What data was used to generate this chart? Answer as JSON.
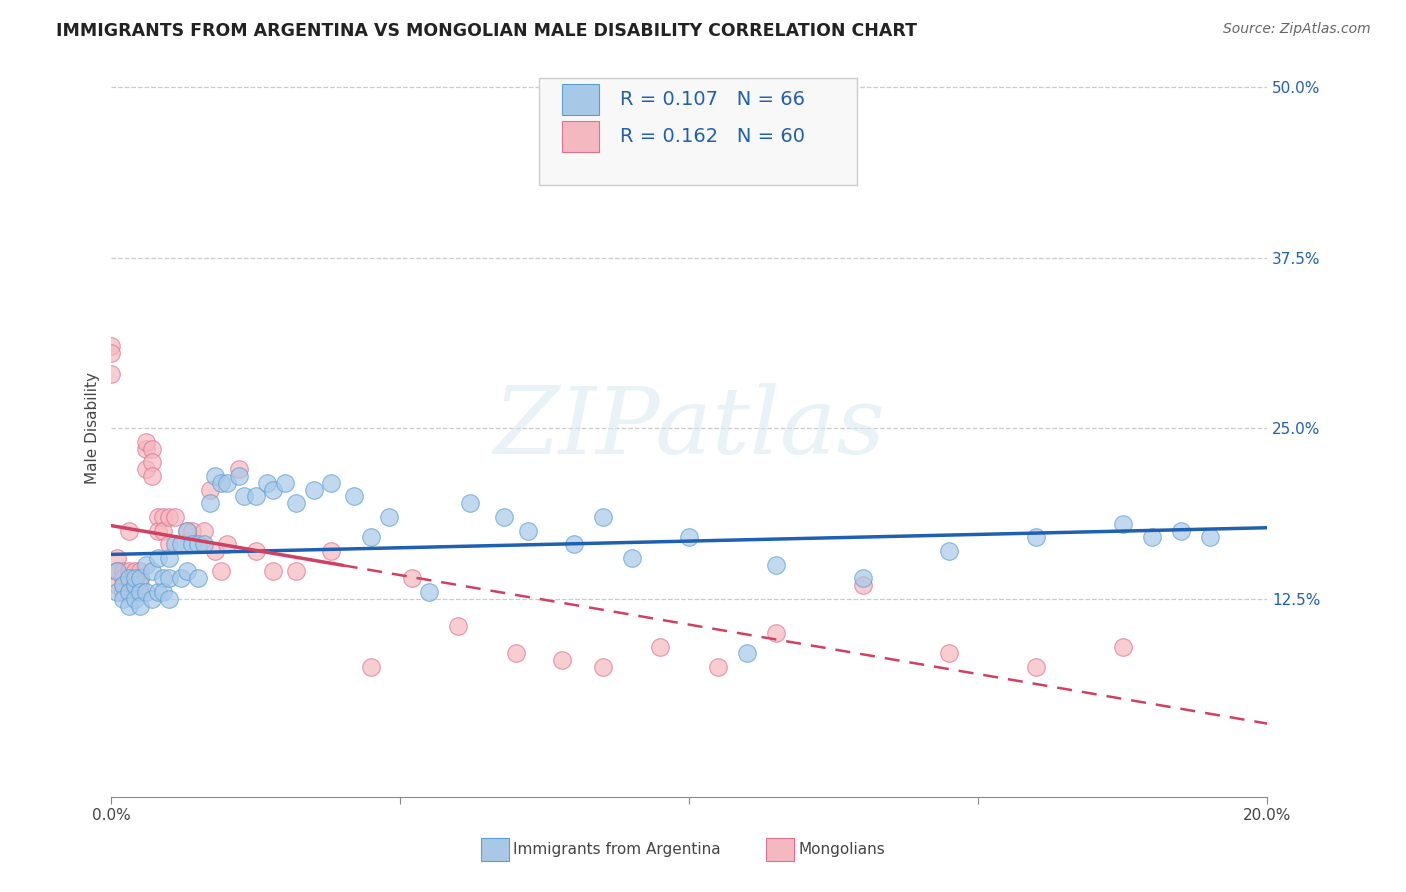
{
  "title": "IMMIGRANTS FROM ARGENTINA VS MONGOLIAN MALE DISABILITY CORRELATION CHART",
  "source": "Source: ZipAtlas.com",
  "xlabel_blue": "Immigrants from Argentina",
  "xlabel_pink": "Mongolians",
  "ylabel": "Male Disability",
  "watermark": "ZIPatlas",
  "xlim": [
    0.0,
    0.2
  ],
  "ylim": [
    -0.02,
    0.52
  ],
  "ytick_positions": [
    0.125,
    0.25,
    0.375,
    0.5
  ],
  "ytick_labels": [
    "12.5%",
    "25.0%",
    "37.5%",
    "50.0%"
  ],
  "grid_yticks": [
    0.125,
    0.25,
    0.375,
    0.5
  ],
  "legend_R_blue": "R = 0.107",
  "legend_N_blue": "N = 66",
  "legend_R_pink": "R = 0.162",
  "legend_N_pink": "N = 60",
  "blue_color": "#a8c8e8",
  "blue_edge_color": "#5a9fd4",
  "pink_color": "#f4b8c0",
  "pink_edge_color": "#e07090",
  "trend_blue_color": "#2060b0",
  "trend_pink_solid_color": "#d04060",
  "trend_pink_dash_color": "#d04060",
  "blue_scatter_x": [
    0.001,
    0.001,
    0.002,
    0.002,
    0.003,
    0.003,
    0.003,
    0.004,
    0.004,
    0.004,
    0.005,
    0.005,
    0.005,
    0.006,
    0.006,
    0.007,
    0.007,
    0.008,
    0.008,
    0.009,
    0.009,
    0.01,
    0.01,
    0.01,
    0.011,
    0.012,
    0.012,
    0.013,
    0.013,
    0.014,
    0.015,
    0.015,
    0.016,
    0.017,
    0.018,
    0.019,
    0.02,
    0.022,
    0.023,
    0.025,
    0.027,
    0.028,
    0.03,
    0.032,
    0.035,
    0.038,
    0.042,
    0.045,
    0.048,
    0.055,
    0.062,
    0.068,
    0.072,
    0.08,
    0.085,
    0.09,
    0.1,
    0.11,
    0.115,
    0.13,
    0.145,
    0.16,
    0.175,
    0.18,
    0.185,
    0.19
  ],
  "blue_scatter_y": [
    0.145,
    0.13,
    0.135,
    0.125,
    0.14,
    0.13,
    0.12,
    0.135,
    0.125,
    0.14,
    0.14,
    0.13,
    0.12,
    0.15,
    0.13,
    0.145,
    0.125,
    0.155,
    0.13,
    0.14,
    0.13,
    0.155,
    0.14,
    0.125,
    0.165,
    0.165,
    0.14,
    0.175,
    0.145,
    0.165,
    0.165,
    0.14,
    0.165,
    0.195,
    0.215,
    0.21,
    0.21,
    0.215,
    0.2,
    0.2,
    0.21,
    0.205,
    0.21,
    0.195,
    0.205,
    0.21,
    0.2,
    0.17,
    0.185,
    0.13,
    0.195,
    0.185,
    0.175,
    0.165,
    0.185,
    0.155,
    0.17,
    0.085,
    0.15,
    0.14,
    0.16,
    0.17,
    0.18,
    0.17,
    0.175,
    0.17
  ],
  "pink_scatter_x": [
    0.0,
    0.0,
    0.0,
    0.001,
    0.001,
    0.001,
    0.001,
    0.002,
    0.002,
    0.002,
    0.002,
    0.003,
    0.003,
    0.003,
    0.003,
    0.003,
    0.004,
    0.004,
    0.004,
    0.005,
    0.005,
    0.005,
    0.006,
    0.006,
    0.006,
    0.007,
    0.007,
    0.007,
    0.008,
    0.008,
    0.009,
    0.009,
    0.01,
    0.01,
    0.011,
    0.013,
    0.014,
    0.016,
    0.017,
    0.018,
    0.019,
    0.02,
    0.022,
    0.025,
    0.028,
    0.032,
    0.038,
    0.045,
    0.052,
    0.06,
    0.07,
    0.078,
    0.085,
    0.095,
    0.105,
    0.115,
    0.13,
    0.145,
    0.16,
    0.175
  ],
  "pink_scatter_y": [
    0.29,
    0.31,
    0.305,
    0.145,
    0.155,
    0.145,
    0.135,
    0.145,
    0.14,
    0.135,
    0.13,
    0.14,
    0.145,
    0.135,
    0.13,
    0.175,
    0.145,
    0.135,
    0.13,
    0.145,
    0.14,
    0.135,
    0.235,
    0.24,
    0.22,
    0.235,
    0.225,
    0.215,
    0.185,
    0.175,
    0.185,
    0.175,
    0.165,
    0.185,
    0.185,
    0.175,
    0.175,
    0.175,
    0.205,
    0.16,
    0.145,
    0.165,
    0.22,
    0.16,
    0.145,
    0.145,
    0.16,
    0.075,
    0.14,
    0.105,
    0.085,
    0.08,
    0.075,
    0.09,
    0.075,
    0.1,
    0.135,
    0.085,
    0.075,
    0.09
  ],
  "background_color": "#ffffff"
}
